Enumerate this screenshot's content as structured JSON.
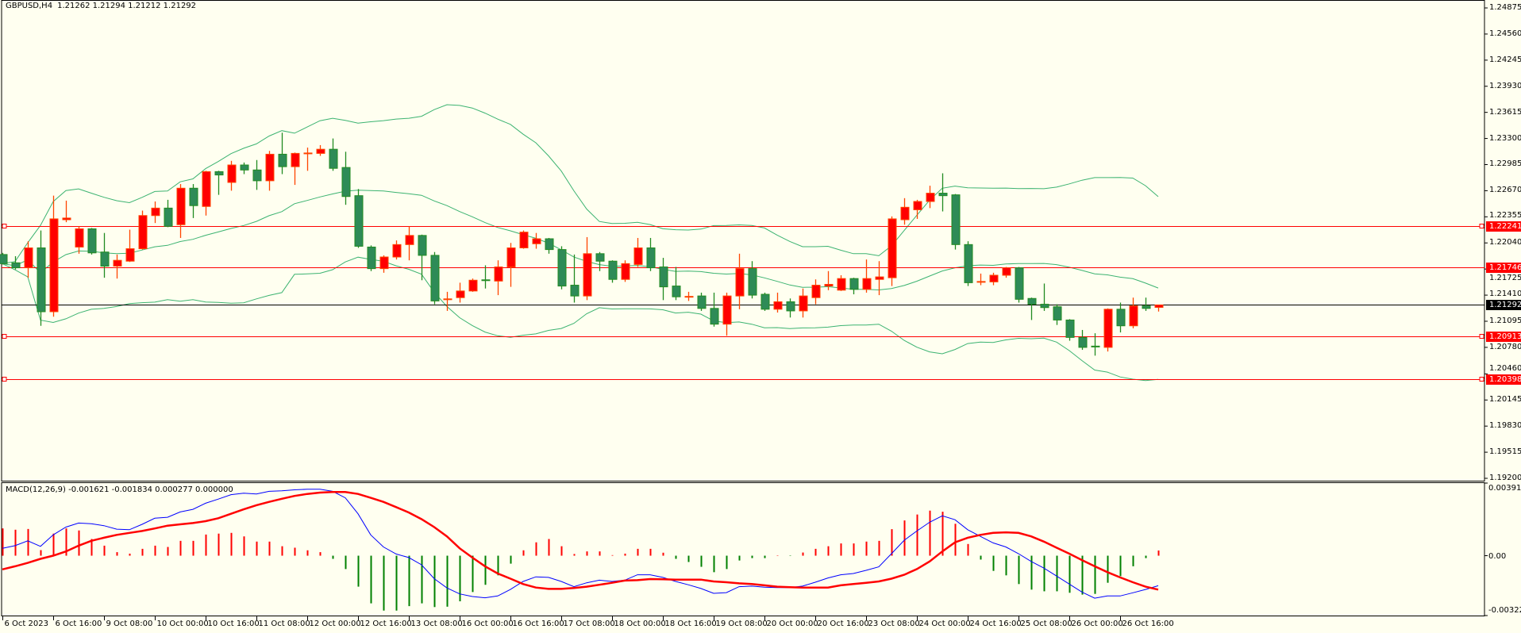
{
  "header": {
    "symbol": "GBPUSD,H4",
    "ohlc": "1.21262 1.21294 1.21212 1.21292"
  },
  "colors": {
    "background": "#fffff0",
    "bull_fill": "#ff0000",
    "bull_edge": "#ff4500",
    "bear_fill": "#2e8b57",
    "bear_edge": "#228b22",
    "bands": "#3cb371",
    "macd_main": "#0000ff",
    "macd_signal": "#ff0000",
    "hist_pos": "#ff0000",
    "hist_neg": "#008000",
    "level": "#ff0000",
    "bid": "#000000"
  },
  "price_axis": {
    "max": 1.24875,
    "min": 1.192,
    "ticks": [
      "1.24875",
      "1.24560",
      "1.24245",
      "1.23930",
      "1.23615",
      "1.23300",
      "1.22985",
      "1.22670",
      "1.22355",
      "1.22040",
      "1.21725",
      "1.21410",
      "1.21095",
      "1.20780",
      "1.20460",
      "1.20145",
      "1.19830",
      "1.19515",
      "1.19200"
    ]
  },
  "levels": [
    {
      "price": "1.22241",
      "marker": true
    },
    {
      "price": "1.21746",
      "marker": false
    },
    {
      "price": "1.20913",
      "marker": true
    },
    {
      "price": "1.20398",
      "marker": true
    }
  ],
  "bid": {
    "price": "1.21292"
  },
  "bollinger": {
    "period": 20,
    "deviation": 2
  },
  "candles": [
    [
      1.219,
      1.2192,
      1.2178,
      1.2179
    ],
    [
      1.218,
      1.2188,
      1.2172,
      1.2174
    ],
    [
      1.2174,
      1.2206,
      1.2162,
      1.2198
    ],
    [
      1.2198,
      1.2219,
      1.2104,
      1.2121
    ],
    [
      1.2121,
      1.2261,
      1.2115,
      1.2233
    ],
    [
      1.2232,
      1.2255,
      1.2229,
      1.2234
    ],
    [
      1.2199,
      1.2224,
      1.2191,
      1.2221
    ],
    [
      1.2221,
      1.2222,
      1.219,
      1.2192
    ],
    [
      1.2193,
      1.2216,
      1.2162,
      1.2176
    ],
    [
      1.2176,
      1.219,
      1.2161,
      1.2183
    ],
    [
      1.2182,
      1.222,
      1.2181,
      1.2197
    ],
    [
      1.2197,
      1.2243,
      1.2196,
      1.2237
    ],
    [
      1.2237,
      1.2254,
      1.2228,
      1.2246
    ],
    [
      1.2246,
      1.2256,
      1.2223,
      1.2224
    ],
    [
      1.2226,
      1.2275,
      1.221,
      1.227
    ],
    [
      1.227,
      1.2275,
      1.2234,
      1.2249
    ],
    [
      1.2248,
      1.2291,
      1.2237,
      1.229
    ],
    [
      1.229,
      1.2291,
      1.2262,
      1.2286
    ],
    [
      1.2277,
      1.2303,
      1.2267,
      1.2298
    ],
    [
      1.2298,
      1.2301,
      1.2287,
      1.2292
    ],
    [
      1.2292,
      1.2304,
      1.2268,
      1.2279
    ],
    [
      1.2279,
      1.2315,
      1.2267,
      1.2311
    ],
    [
      1.2311,
      1.2337,
      1.2287,
      1.2296
    ],
    [
      1.2296,
      1.2313,
      1.2274,
      1.2312
    ],
    [
      1.2311,
      1.2319,
      1.2291,
      1.2312
    ],
    [
      1.2312,
      1.2322,
      1.2309,
      1.2317
    ],
    [
      1.2317,
      1.233,
      1.2291,
      1.2294
    ],
    [
      1.2295,
      1.2314,
      1.225,
      1.226
    ],
    [
      1.2261,
      1.2269,
      1.2198,
      1.22
    ],
    [
      1.2199,
      1.2201,
      1.217,
      1.2173
    ],
    [
      1.2173,
      1.2189,
      1.2168,
      1.2187
    ],
    [
      1.2187,
      1.2207,
      1.2184,
      1.2202
    ],
    [
      1.2202,
      1.2224,
      1.2183,
      1.2213
    ],
    [
      1.2213,
      1.2214,
      1.2159,
      1.2189
    ],
    [
      1.2189,
      1.2193,
      1.213,
      1.2134
    ],
    [
      1.2135,
      1.2145,
      1.2122,
      1.2136
    ],
    [
      1.2138,
      1.2156,
      1.2132,
      1.2146
    ],
    [
      1.2146,
      1.2161,
      1.2145,
      1.2159
    ],
    [
      1.2159,
      1.2177,
      1.2149,
      1.2158
    ],
    [
      1.2158,
      1.2183,
      1.2141,
      1.2175
    ],
    [
      1.2175,
      1.2204,
      1.2151,
      1.2198
    ],
    [
      1.2198,
      1.2219,
      1.2197,
      1.2217
    ],
    [
      1.2203,
      1.2216,
      1.2197,
      1.2209
    ],
    [
      1.2209,
      1.221,
      1.2191,
      1.2196
    ],
    [
      1.2196,
      1.22,
      1.2148,
      1.2152
    ],
    [
      1.2153,
      1.219,
      1.2132,
      1.214
    ],
    [
      1.214,
      1.2211,
      1.2135,
      1.2191
    ],
    [
      1.2191,
      1.2193,
      1.217,
      1.2182
    ],
    [
      1.2182,
      1.2183,
      1.2156,
      1.216
    ],
    [
      1.216,
      1.2183,
      1.2157,
      1.2179
    ],
    [
      1.2178,
      1.221,
      1.2175,
      1.2198
    ],
    [
      1.2198,
      1.221,
      1.217,
      1.2174
    ],
    [
      1.2175,
      1.2186,
      1.2135,
      1.2151
    ],
    [
      1.2152,
      1.2175,
      1.2135,
      1.2139
    ],
    [
      1.2138,
      1.2145,
      1.2134,
      1.2139
    ],
    [
      1.214,
      1.2144,
      1.2122,
      1.2125
    ],
    [
      1.2125,
      1.2144,
      1.2103,
      1.2106
    ],
    [
      1.2106,
      1.2144,
      1.2092,
      1.214
    ],
    [
      1.214,
      1.2191,
      1.2124,
      1.2173
    ],
    [
      1.2173,
      1.2182,
      1.2137,
      1.2141
    ],
    [
      1.2142,
      1.2144,
      1.2122,
      1.2124
    ],
    [
      1.2124,
      1.2144,
      1.212,
      1.2133
    ],
    [
      1.2133,
      1.2137,
      1.2114,
      1.2122
    ],
    [
      1.2122,
      1.2149,
      1.2114,
      1.214
    ],
    [
      1.2138,
      1.216,
      1.213,
      1.2153
    ],
    [
      1.2152,
      1.217,
      1.2147,
      1.2154
    ],
    [
      1.2147,
      1.2165,
      1.2146,
      1.2161
    ],
    [
      1.2161,
      1.2162,
      1.2142,
      1.2148
    ],
    [
      1.2148,
      1.2184,
      1.2144,
      1.2161
    ],
    [
      1.216,
      1.2182,
      1.2141,
      1.2163
    ],
    [
      1.2162,
      1.2236,
      1.2152,
      1.2233
    ],
    [
      1.2232,
      1.2258,
      1.2226,
      1.2247
    ],
    [
      1.2244,
      1.2256,
      1.2233,
      1.2254
    ],
    [
      1.2254,
      1.2273,
      1.2246,
      1.2264
    ],
    [
      1.2264,
      1.2288,
      1.2242,
      1.2261
    ],
    [
      1.2262,
      1.2263,
      1.2196,
      1.2202
    ],
    [
      1.2202,
      1.2206,
      1.2152,
      1.2156
    ],
    [
      1.2156,
      1.2167,
      1.2153,
      1.2157
    ],
    [
      1.2157,
      1.2168,
      1.2153,
      1.2165
    ],
    [
      1.2165,
      1.2175,
      1.2162,
      1.2174
    ],
    [
      1.2174,
      1.2175,
      1.2132,
      1.2136
    ],
    [
      1.2137,
      1.2138,
      1.2111,
      1.213
    ],
    [
      1.213,
      1.2155,
      1.2122,
      1.2126
    ],
    [
      1.2127,
      1.213,
      1.2105,
      1.2111
    ],
    [
      1.2111,
      1.2112,
      1.2086,
      1.209
    ],
    [
      1.209,
      1.2099,
      1.2075,
      1.2078
    ],
    [
      1.2079,
      1.2095,
      1.2068,
      1.2078
    ],
    [
      1.2078,
      1.2125,
      1.2073,
      1.2124
    ],
    [
      1.2124,
      1.2132,
      1.2096,
      1.2104
    ],
    [
      1.2104,
      1.2138,
      1.2101,
      1.2128
    ],
    [
      1.2128,
      1.2138,
      1.2122,
      1.2125
    ],
    [
      1.21262,
      1.21294,
      1.21212,
      1.21292
    ]
  ],
  "macd": {
    "label": "MACD(12,26,9) -0.001621 -0.001834 0.000277 0.000000",
    "axis": {
      "max": "0.003915",
      "zero": "0.00",
      "min": "-0.003228"
    },
    "main": [
      0.0004,
      0.00054,
      0.0008,
      0.0005,
      0.00112,
      0.00154,
      0.00176,
      0.00172,
      0.00162,
      0.00143,
      0.0014,
      0.00169,
      0.00202,
      0.00207,
      0.00236,
      0.0025,
      0.00283,
      0.00305,
      0.00329,
      0.00337,
      0.00333,
      0.00347,
      0.0035,
      0.00355,
      0.00358,
      0.00358,
      0.00347,
      0.00312,
      0.00226,
      0.00112,
      0.00047,
      9e-05,
      -0.0001,
      -0.00049,
      -0.00124,
      -0.00174,
      -0.00206,
      -0.0022,
      -0.00227,
      -0.00217,
      -0.00182,
      -0.00139,
      -0.00114,
      -0.00117,
      -0.00139,
      -0.00167,
      -0.00146,
      -0.00132,
      -0.00139,
      -0.00132,
      -0.00103,
      -0.00103,
      -0.00117,
      -0.00139,
      -0.00157,
      -0.00177,
      -0.00203,
      -0.00199,
      -0.00167,
      -0.00164,
      -0.0017,
      -0.00172,
      -0.00172,
      -0.00164,
      -0.00143,
      -0.0012,
      -0.00103,
      -0.00096,
      -0.00079,
      -0.0006,
      0.00011,
      0.00083,
      0.00133,
      0.0018,
      0.00215,
      0.00194,
      0.0014,
      0.00104,
      0.00069,
      0.00047,
      0.00011,
      -0.00031,
      -0.00067,
      -0.0011,
      -0.00153,
      -0.00196,
      -0.00229,
      -0.00217,
      -0.00217,
      -0.002,
      -0.00182,
      -0.00162
    ],
    "signal": [
      -0.00074,
      -0.00057,
      -0.00039,
      -0.00017,
      0.0,
      0.00023,
      0.00054,
      0.0008,
      0.00097,
      0.00112,
      0.00123,
      0.00133,
      0.00147,
      0.00162,
      0.00169,
      0.00176,
      0.00186,
      0.00202,
      0.00226,
      0.0025,
      0.00272,
      0.0029,
      0.00307,
      0.00322,
      0.00333,
      0.0034,
      0.00343,
      0.00343,
      0.00333,
      0.00312,
      0.0029,
      0.00262,
      0.00233,
      0.00197,
      0.00154,
      0.00104,
      0.0004,
      -0.0001,
      -0.00057,
      -0.00096,
      -0.00124,
      -0.00153,
      -0.00172,
      -0.00179,
      -0.00179,
      -0.00174,
      -0.00167,
      -0.00157,
      -0.00146,
      -0.00134,
      -0.00132,
      -0.00126,
      -0.00127,
      -0.00129,
      -0.00129,
      -0.00129,
      -0.00139,
      -0.00143,
      -0.00149,
      -0.00153,
      -0.0016,
      -0.00167,
      -0.0017,
      -0.00172,
      -0.00172,
      -0.00172,
      -0.0016,
      -0.00153,
      -0.00146,
      -0.00139,
      -0.00124,
      -0.00103,
      -0.00072,
      -0.00031,
      0.00023,
      0.00072,
      0.00097,
      0.00112,
      0.00123,
      0.00126,
      0.00123,
      0.00104,
      0.00076,
      0.00043,
      0.00011,
      -0.00024,
      -0.00057,
      -0.00089,
      -0.00117,
      -0.00143,
      -0.00167,
      -0.00183
    ],
    "hist": [
      0.00147,
      0.0014,
      0.00144,
      0.0003,
      0.00119,
      0.00147,
      0.00136,
      0.0009,
      0.00054,
      0.00019,
      0.00011,
      0.00037,
      0.00054,
      0.00047,
      0.0008,
      0.0008,
      0.00114,
      0.00119,
      0.00123,
      0.00104,
      0.00076,
      0.00076,
      0.00051,
      0.00043,
      0.00029,
      0.00019,
      -0.00017,
      -0.00072,
      -0.00167,
      -0.00257,
      -0.00296,
      -0.00296,
      -0.00272,
      -0.00257,
      -0.00277,
      -0.00275,
      -0.00246,
      -0.00196,
      -0.00157,
      -0.00106,
      -0.00043,
      0.00029,
      0.00072,
      0.0009,
      0.00051,
      9e-05,
      0.00023,
      0.00023,
      3e-05,
      0.00011,
      0.00037,
      0.00037,
      0.00016,
      -0.00017,
      -0.00034,
      -0.0006,
      -0.00089,
      -0.00072,
      -0.00026,
      -0.00013,
      -0.00013,
      2e-05,
      -2e-05,
      0.00017,
      0.00037,
      0.00051,
      0.00066,
      0.00066,
      0.00076,
      0.0008,
      0.00143,
      0.0019,
      0.00222,
      0.00243,
      0.00237,
      0.00172,
      0.00063,
      -0.00021,
      -0.00082,
      -0.00106,
      -0.00153,
      -0.00183,
      -0.00192,
      -0.00192,
      -0.002,
      -0.0021,
      -0.00206,
      -0.00146,
      -0.0011,
      -0.00057,
      -0.00013,
      0.00028
    ]
  },
  "time_axis": {
    "labels": [
      "6 Oct 2023",
      "6 Oct 16:00",
      "9 Oct 08:00",
      "10 Oct 00:00",
      "10 Oct 16:00",
      "11 Oct 08:00",
      "12 Oct 00:00",
      "12 Oct 16:00",
      "13 Oct 08:00",
      "16 Oct 00:00",
      "16 Oct 16:00",
      "17 Oct 08:00",
      "18 Oct 00:00",
      "18 Oct 16:00",
      "19 Oct 08:00",
      "20 Oct 00:00",
      "20 Oct 16:00",
      "23 Oct 08:00",
      "24 Oct 00:00",
      "24 Oct 16:00",
      "25 Oct 08:00",
      "26 Oct 00:00",
      "26 Oct 16:00"
    ]
  }
}
